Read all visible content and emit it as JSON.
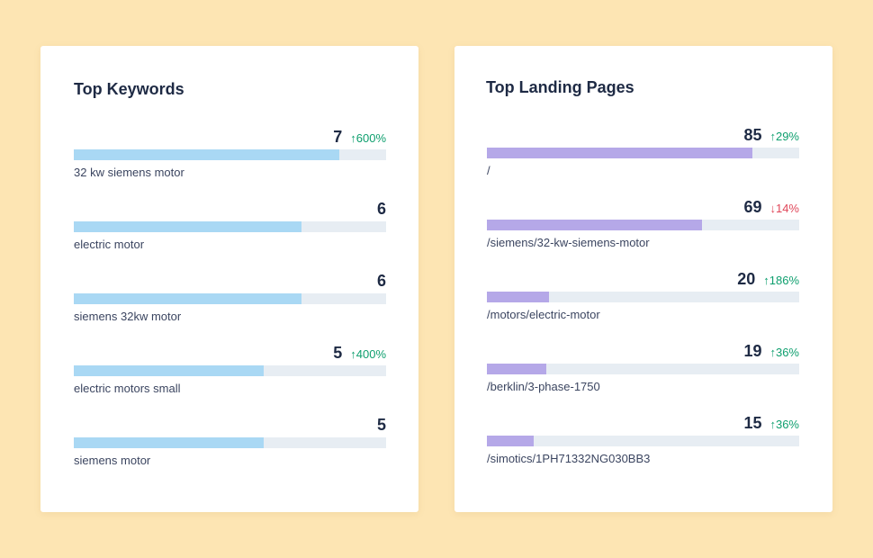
{
  "keywords": {
    "title": "Top Keywords",
    "max": 8.24,
    "items": [
      {
        "label": "32 kw siemens motor",
        "value": 7,
        "change": "↑600%",
        "direction": "up"
      },
      {
        "label": "electric motor",
        "value": 6,
        "change": "",
        "direction": ""
      },
      {
        "label": "siemens 32kw motor",
        "value": 6,
        "change": "",
        "direction": ""
      },
      {
        "label": "electric motors small",
        "value": 5,
        "change": "↑400%",
        "direction": "up"
      },
      {
        "label": "siemens motor",
        "value": 5,
        "change": "",
        "direction": ""
      }
    ]
  },
  "landing_pages": {
    "title": "Top Landing Pages",
    "max": 100,
    "items": [
      {
        "label": "/",
        "value": 85,
        "change": "↑29%",
        "direction": "up"
      },
      {
        "label": "/siemens/32-kw-siemens-motor",
        "value": 69,
        "change": "↓14%",
        "direction": "down"
      },
      {
        "label": "/motors/electric-motor",
        "value": 20,
        "change": "↑186%",
        "direction": "up"
      },
      {
        "label": "/berklin/3-phase-1750",
        "value": 19,
        "change": "↑36%",
        "direction": "up"
      },
      {
        "label": "/simotics/1PH71332NG030BB3",
        "value": 15,
        "change": "↑36%",
        "direction": "up"
      }
    ]
  }
}
